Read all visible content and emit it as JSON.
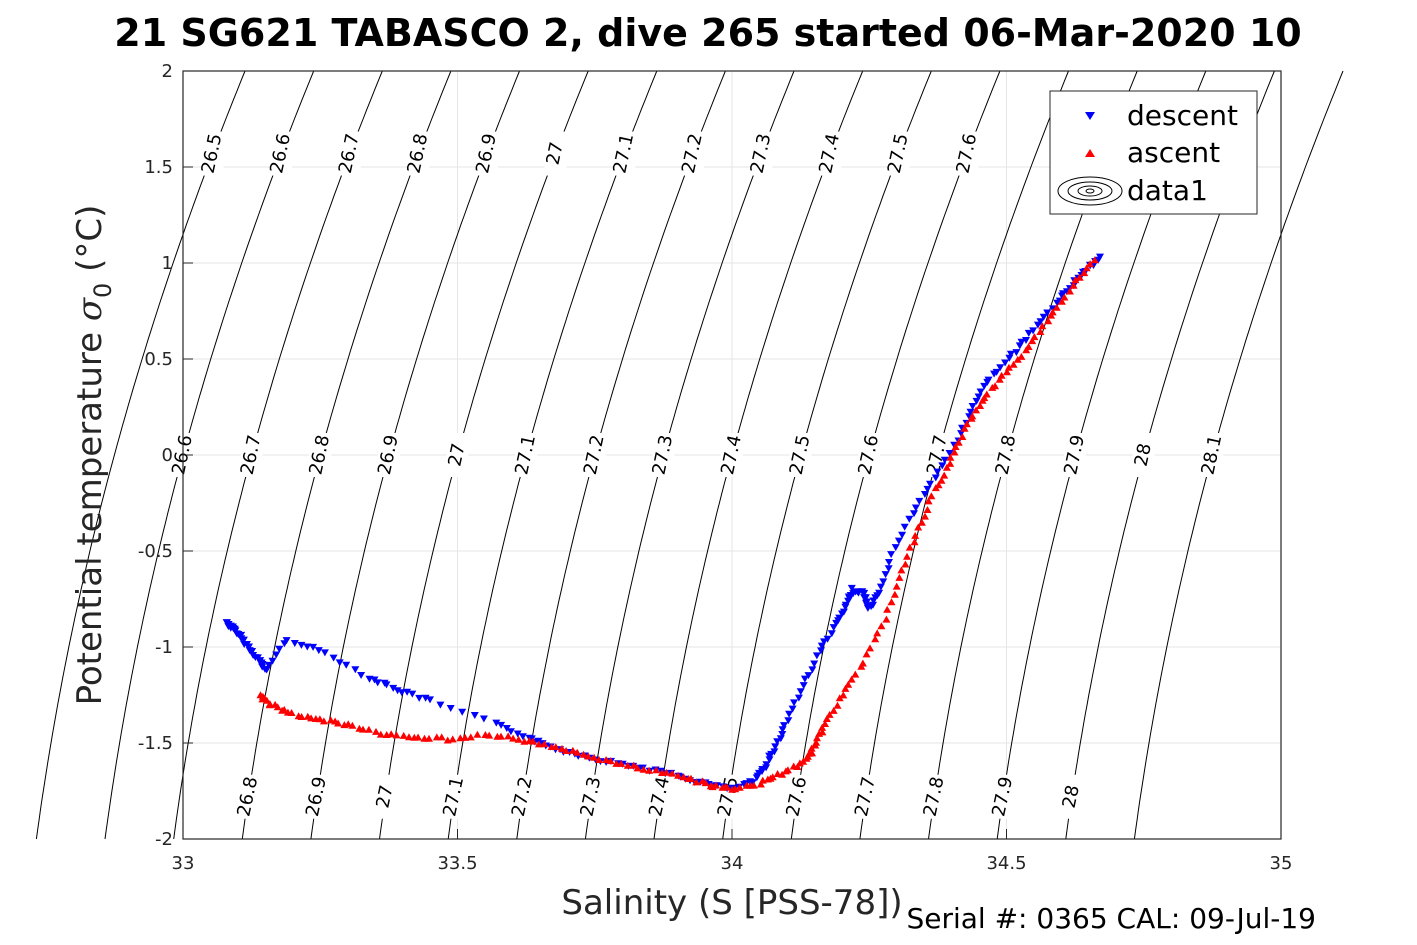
{
  "title": "21 SG621 TABASCO 2, dive 265 started 06-Mar-2020 10",
  "footer": "Serial #: 0365  CAL: 09-Jul-19",
  "colors": {
    "descent": "#0000ff",
    "ascent": "#ff0000",
    "isopycnal": "#000000",
    "grid": "#e6e6e6"
  },
  "chart_data": {
    "type": "scatter",
    "xlabel": "Salinity (S [PSS-78])",
    "ylabel_main": "Potential temperature ",
    "ylabel_sigma": "σ",
    "ylabel_sub": "0",
    "ylabel_unit": " (°C)",
    "xlim": [
      33,
      35
    ],
    "ylim": [
      -2,
      2
    ],
    "xticks": [
      33,
      33.5,
      34,
      34.5,
      35
    ],
    "xtick_labels": [
      "33",
      "33.5",
      "34",
      "34.5",
      "35"
    ],
    "yticks": [
      -2,
      -1.5,
      -1,
      -0.5,
      0,
      0.5,
      1,
      1.5,
      2
    ],
    "ytick_labels": [
      "-2",
      "-1.5",
      "-1",
      "-0.5",
      "0",
      "0.5",
      "1",
      "1.5",
      "2"
    ],
    "grid": true,
    "legend_position": "top-right",
    "legend": [
      "descent",
      "ascent",
      "data1"
    ],
    "isopycnals": {
      "values": [
        26.5,
        26.6,
        26.7,
        26.8,
        26.9,
        27,
        27.1,
        27.2,
        27.3,
        27.4,
        27.5,
        27.6,
        27.7,
        27.8,
        27.9,
        28,
        28.1
      ],
      "label_rows": [
        {
          "theta": 1.57,
          "labels": [
            "26.5",
            "26.6",
            "26.7",
            "26.8",
            "26.9",
            "27",
            "27.1",
            "27.2",
            "27.3",
            "27.4",
            "27.5",
            "27.6",
            "28"
          ]
        },
        {
          "theta": 0.0,
          "labels": [
            "26.5",
            "26.6",
            "26.7",
            "26.8",
            "26.9",
            "27",
            "27.1",
            "27.2",
            "27.3",
            "27.4",
            "27.5",
            "27.6",
            "27.7",
            "27.8",
            "27.9",
            "28",
            "28.1"
          ]
        },
        {
          "theta": -1.78,
          "labels": [
            "26.6",
            "26.7",
            "26.8",
            "26.9",
            "27",
            "27.1",
            "27.2",
            "27.3",
            "27.4",
            "27.5",
            "27.6",
            "27.7",
            "27.8",
            "27.9",
            "28"
          ]
        }
      ]
    },
    "series": [
      {
        "name": "descent",
        "marker": "triangle-down",
        "x": [
          33.08,
          33.09,
          33.1,
          33.12,
          33.14,
          33.15,
          33.19,
          33.26,
          33.34,
          33.39,
          33.45,
          33.57,
          33.63,
          33.67,
          33.72,
          33.78,
          33.84,
          33.9,
          33.95,
          34.0,
          34.04,
          34.06,
          34.08,
          34.1,
          34.13,
          34.16,
          34.19,
          34.21,
          34.22,
          34.24,
          34.25,
          34.27,
          34.29,
          34.33,
          34.37,
          34.41,
          34.44,
          34.47,
          34.51,
          34.55,
          34.59,
          34.62,
          34.65,
          34.67
        ],
        "y": [
          -0.87,
          -0.9,
          -0.93,
          -1.0,
          -1.07,
          -1.12,
          -0.96,
          -1.03,
          -1.16,
          -1.22,
          -1.28,
          -1.4,
          -1.47,
          -1.52,
          -1.56,
          -1.6,
          -1.63,
          -1.67,
          -1.71,
          -1.74,
          -1.7,
          -1.62,
          -1.52,
          -1.38,
          -1.2,
          -1.02,
          -0.88,
          -0.78,
          -0.7,
          -0.72,
          -0.8,
          -0.72,
          -0.52,
          -0.3,
          -0.12,
          0.08,
          0.26,
          0.4,
          0.52,
          0.65,
          0.79,
          0.89,
          0.98,
          1.03
        ]
      },
      {
        "name": "ascent",
        "marker": "triangle-up",
        "x": [
          33.14,
          33.16,
          33.2,
          33.25,
          33.3,
          33.36,
          33.42,
          33.48,
          33.55,
          33.61,
          33.67,
          33.73,
          33.79,
          33.85,
          33.91,
          33.96,
          34.0,
          34.05,
          34.09,
          34.13,
          34.15,
          34.17,
          34.2,
          34.24,
          34.28,
          34.31,
          34.34,
          34.37,
          34.4,
          34.43,
          34.46,
          34.5,
          34.54,
          34.58,
          34.62,
          34.66
        ],
        "y": [
          -1.25,
          -1.3,
          -1.35,
          -1.38,
          -1.41,
          -1.45,
          -1.47,
          -1.48,
          -1.46,
          -1.48,
          -1.52,
          -1.56,
          -1.61,
          -1.64,
          -1.68,
          -1.72,
          -1.74,
          -1.71,
          -1.66,
          -1.6,
          -1.52,
          -1.4,
          -1.25,
          -1.08,
          -0.85,
          -0.6,
          -0.38,
          -0.18,
          -0.02,
          0.16,
          0.3,
          0.43,
          0.56,
          0.72,
          0.88,
          1.02
        ]
      }
    ]
  }
}
